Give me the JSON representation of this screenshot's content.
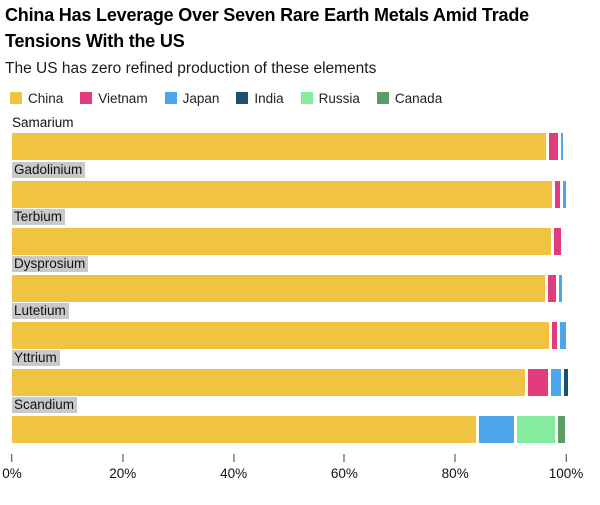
{
  "header": {
    "title": "China Has Leverage Over Seven Rare Earth Metals Amid Trade Tensions With the US",
    "subtitle": "The US has zero refined production of these elements"
  },
  "colors": {
    "background": "#ffffff",
    "category_label_highlight": "#c9c9c9",
    "axis_tick": "#3c3c3c"
  },
  "chart_data": {
    "type": "bar",
    "orientation": "horizontal",
    "stacked": true,
    "unit": "%",
    "title": "China Has Leverage Over Seven Rare Earth Metals Amid Trade Tensions With the US",
    "subtitle": "The US has zero refined production of these elements",
    "legend_position": "top",
    "categories": [
      "Samarium",
      "Gadolinium",
      "Terbium",
      "Dysprosium",
      "Lutetium",
      "Yttrium",
      "Scandium"
    ],
    "highlighted_categories": [
      "Gadolinium",
      "Terbium",
      "Dysprosium",
      "Lutetium",
      "Yttrium",
      "Scandium"
    ],
    "series": [
      {
        "name": "China",
        "color": "#F0C440",
        "values": [
          97.0,
          98.0,
          97.8,
          96.8,
          97.4,
          93.2,
          84.3
        ]
      },
      {
        "name": "Vietnam",
        "color": "#E03C7E",
        "values": [
          1.5,
          1.0,
          1.3,
          1.4,
          1.0,
          3.6,
          0
        ]
      },
      {
        "name": "Japan",
        "color": "#4FA5EA",
        "values": [
          0.5,
          0.4,
          0,
          0.5,
          1.0,
          1.8,
          6.4
        ]
      },
      {
        "name": "India",
        "color": "#1F4F6E",
        "values": [
          0,
          0,
          0,
          0,
          0,
          0.7,
          0
        ]
      },
      {
        "name": "Russia",
        "color": "#85EC9E",
        "values": [
          0,
          0,
          0,
          0,
          0,
          0,
          6.8
        ]
      },
      {
        "name": "Canada",
        "color": "#579D64",
        "values": [
          0,
          0,
          0,
          0,
          0,
          0,
          1.3
        ]
      }
    ],
    "x_axis": {
      "min": 0,
      "max": 100,
      "tick_labels": [
        "0%",
        "20%",
        "40%",
        "60%",
        "80%",
        "100%"
      ],
      "tick_values": [
        0,
        20,
        40,
        60,
        80,
        100
      ],
      "grid": false
    }
  }
}
